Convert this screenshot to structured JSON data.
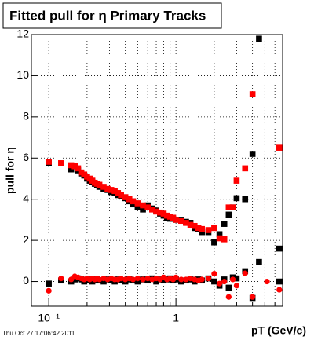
{
  "chart_data": {
    "type": "scatter",
    "title": "Fitted pull for η  Primary Tracks",
    "y_label": "pull for η",
    "x_label": "pT (GeV/c)",
    "footer": "Thu Oct 27 17:06:42 2011",
    "log_x": true,
    "grid": true,
    "xlim": [
      0.073,
      6.9
    ],
    "ylim": [
      -1.2,
      12
    ],
    "xticks": [
      {
        "value": 0.1,
        "label": "10⁻¹"
      },
      1
    ],
    "xminor_ticks": [
      0.2,
      0.3,
      0.4,
      0.5,
      0.6,
      0.7,
      0.8,
      0.9,
      2,
      3,
      4,
      5,
      6
    ],
    "yticks": [
      0,
      2,
      4,
      6,
      8,
      10,
      12
    ],
    "x": [
      0.1,
      0.125,
      0.15,
      0.16,
      0.17,
      0.18,
      0.19,
      0.2,
      0.21,
      0.22,
      0.23,
      0.24,
      0.25,
      0.27,
      0.29,
      0.31,
      0.33,
      0.35,
      0.37,
      0.4,
      0.43,
      0.46,
      0.5,
      0.55,
      0.6,
      0.65,
      0.7,
      0.75,
      0.8,
      0.85,
      0.9,
      0.95,
      1.0,
      1.1,
      1.2,
      1.3,
      1.4,
      1.5,
      1.6,
      1.8,
      2.0,
      2.2,
      2.4,
      2.6,
      2.8,
      3.0,
      3.5,
      4.0,
      4.5,
      5.2,
      6.5
    ],
    "series": [
      {
        "color": "#000000",
        "marker": "square",
        "values": [
          5.75,
          null,
          5.45,
          5.6,
          5.4,
          5.25,
          5.15,
          5.0,
          4.9,
          4.85,
          4.75,
          4.7,
          4.6,
          4.5,
          4.45,
          4.35,
          4.3,
          4.2,
          4.15,
          4.05,
          3.9,
          3.75,
          3.6,
          3.5,
          3.7,
          3.55,
          3.45,
          3.3,
          3.2,
          3.1,
          3.05,
          3.05,
          3.0,
          3.0,
          2.9,
          2.85,
          2.6,
          2.55,
          2.4,
          2.4,
          1.9,
          2.3,
          2.8,
          3.25,
          3.6,
          4.05,
          4.0,
          6.2,
          11.8,
          null,
          1.6
        ]
      },
      {
        "color": "#ff0000",
        "marker": "square",
        "values": [
          5.82,
          5.75,
          5.65,
          5.6,
          5.5,
          5.3,
          5.2,
          5.1,
          5.0,
          4.9,
          4.8,
          4.75,
          4.7,
          4.6,
          4.5,
          4.45,
          4.4,
          4.3,
          4.2,
          4.1,
          4.0,
          3.9,
          3.8,
          3.7,
          3.6,
          3.5,
          3.4,
          3.35,
          3.3,
          3.2,
          3.15,
          3.1,
          3.0,
          2.95,
          2.85,
          2.75,
          2.7,
          2.6,
          2.55,
          2.5,
          2.6,
          2.1,
          2.05,
          3.6,
          3.6,
          4.9,
          5.5,
          9.1,
          null,
          null,
          6.5
        ]
      },
      {
        "color": "#000000",
        "marker": "square",
        "values": [
          -0.1,
          0.05,
          0.0,
          0.1,
          0.15,
          0.1,
          0.0,
          0.05,
          0.1,
          0.0,
          0.05,
          0.1,
          0.05,
          0.0,
          0.1,
          0.05,
          0.0,
          0.1,
          0.05,
          0.0,
          0.1,
          0.05,
          0.0,
          0.1,
          0.05,
          0.15,
          0.0,
          0.1,
          0.05,
          0.1,
          0.15,
          0.05,
          0.1,
          0.0,
          0.05,
          0.1,
          0.0,
          0.1,
          0.05,
          0.15,
          0.0,
          -0.2,
          0.1,
          -0.3,
          0.2,
          0.15,
          0.5,
          -0.8,
          0.95,
          null,
          0.0
        ]
      },
      {
        "color": "#ff0000",
        "marker": "circle",
        "values": [
          -0.45,
          0.15,
          0.1,
          0.25,
          0.2,
          0.15,
          0.1,
          0.15,
          0.1,
          0.15,
          0.1,
          0.15,
          0.1,
          0.15,
          0.1,
          0.15,
          0.1,
          0.1,
          0.15,
          0.1,
          0.15,
          0.1,
          0.15,
          0.1,
          0.15,
          0.1,
          0.15,
          0.1,
          0.2,
          0.1,
          0.15,
          0.1,
          0.2,
          0.1,
          0.1,
          0.15,
          0.1,
          0.05,
          0.1,
          0.15,
          0.38,
          -0.1,
          0.0,
          -0.75,
          0.1,
          -0.2,
          0.4,
          -0.75,
          null,
          0.0,
          -0.4
        ]
      }
    ]
  }
}
